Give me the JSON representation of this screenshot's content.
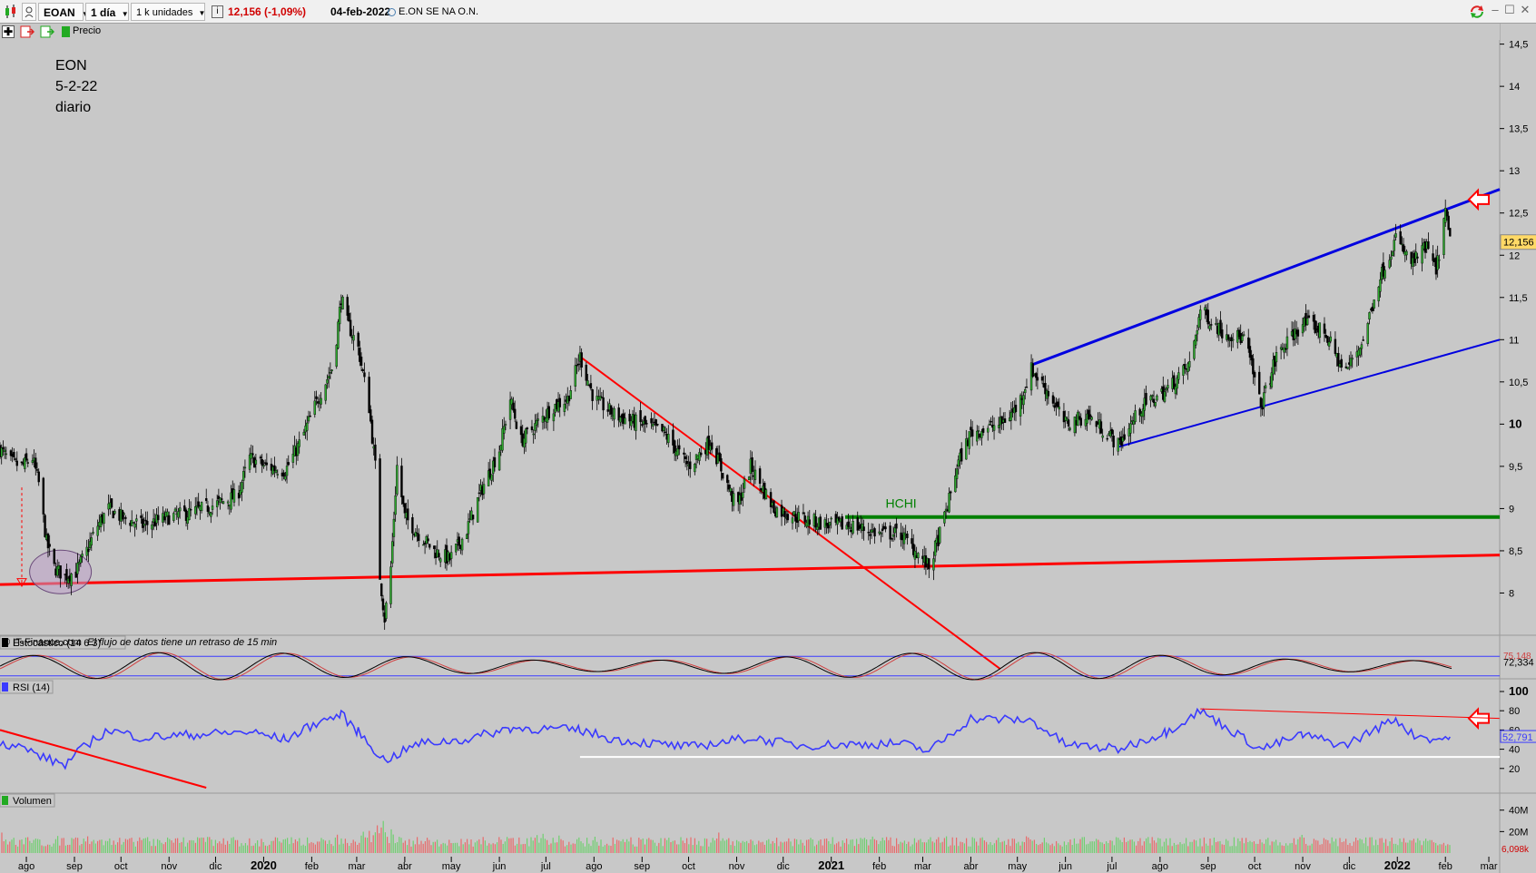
{
  "toolbar": {
    "symbol": "EOAN",
    "interval": "1 día",
    "units": "1 k unidades",
    "info_glyph": "i",
    "price_change": "12,156 (-1,09%)",
    "date": "04-feb-2022",
    "instrument": "E.ON SE NA O.N."
  },
  "subbar": {
    "price_label": "Precio"
  },
  "annotation": {
    "line1": "EON",
    "line2": "5-2-22",
    "line3": "diario",
    "hchi": "HCHI"
  },
  "copyright": {
    "source": "© IT-Finance.com",
    "delay": "El flujo de datos tiene un retraso de 15 min"
  },
  "panels": {
    "stochastic": {
      "label": "Estocástico (14 6 3)",
      "value1": "75,148",
      "value2": "72,334"
    },
    "rsi": {
      "label": "RSI (14)",
      "value": "52,791"
    },
    "volume": {
      "label": "Volumen",
      "value": "6,098k"
    }
  },
  "colors": {
    "candle": "#000000",
    "red_line": "#ff0000",
    "blue_line": "#0000e0",
    "green_line": "#008000",
    "rsi": "#3a3aff",
    "price_tag": "#ffd966"
  },
  "chart_data": [
    {
      "type": "candlestick",
      "title": "",
      "symbol": "EOAN",
      "current_price": "12,156",
      "y_ticks": [
        "8",
        "8,5",
        "9",
        "9,5",
        "10",
        "10,5",
        "11",
        "11,5",
        "12",
        "12,5",
        "13",
        "13,5",
        "14",
        "14,5"
      ],
      "ylim": [
        7.5,
        14.7
      ],
      "x_ticks": [
        "ago",
        "sep",
        "oct",
        "nov",
        "dic",
        "2020",
        "feb",
        "mar",
        "abr",
        "may",
        "jun",
        "jul",
        "ago",
        "sep",
        "oct",
        "nov",
        "dic",
        "2021",
        "feb",
        "mar",
        "abr",
        "may",
        "jun",
        "jul",
        "ago",
        "sep",
        "oct",
        "nov",
        "dic",
        "2022",
        "feb",
        "mar"
      ],
      "x_range": [
        "2019-07-15",
        "2022-03-08"
      ],
      "close_path": [
        [
          "2019-07-15",
          9.7
        ],
        [
          "2019-07-22",
          9.55
        ],
        [
          "2019-07-29",
          9.5
        ],
        [
          "2019-08-05",
          9.6
        ],
        [
          "2019-08-09",
          9.3
        ],
        [
          "2019-08-14",
          8.6
        ],
        [
          "2019-08-19",
          8.3
        ],
        [
          "2019-08-26",
          8.2
        ],
        [
          "2019-09-02",
          8.25
        ],
        [
          "2019-09-09",
          8.5
        ],
        [
          "2019-09-16",
          8.8
        ],
        [
          "2019-09-23",
          9.0
        ],
        [
          "2019-10-01",
          8.9
        ],
        [
          "2019-10-15",
          8.8
        ],
        [
          "2019-11-01",
          8.9
        ],
        [
          "2019-11-15",
          8.95
        ],
        [
          "2019-12-01",
          9.05
        ],
        [
          "2019-12-15",
          9.15
        ],
        [
          "2019-12-23",
          9.6
        ],
        [
          "2020-01-02",
          9.5
        ],
        [
          "2020-01-15",
          9.45
        ],
        [
          "2020-01-25",
          9.8
        ],
        [
          "2020-02-05",
          10.3
        ],
        [
          "2020-02-15",
          10.7
        ],
        [
          "2020-02-20",
          11.5
        ],
        [
          "2020-02-24",
          11.2
        ],
        [
          "2020-03-02",
          10.9
        ],
        [
          "2020-03-09",
          10.2
        ],
        [
          "2020-03-13",
          9.5
        ],
        [
          "2020-03-16",
          8.2
        ],
        [
          "2020-03-19",
          7.7
        ],
        [
          "2020-03-23",
          8.3
        ],
        [
          "2020-03-27",
          9.5
        ],
        [
          "2020-04-01",
          8.9
        ],
        [
          "2020-04-10",
          8.7
        ],
        [
          "2020-04-20",
          8.5
        ],
        [
          "2020-04-30",
          8.4
        ],
        [
          "2020-05-10",
          8.7
        ],
        [
          "2020-05-20",
          9.2
        ],
        [
          "2020-06-01",
          9.7
        ],
        [
          "2020-06-08",
          10.3
        ],
        [
          "2020-06-15",
          9.8
        ],
        [
          "2020-06-25",
          10.0
        ],
        [
          "2020-07-05",
          10.2
        ],
        [
          "2020-07-15",
          10.3
        ],
        [
          "2020-07-23",
          10.8
        ],
        [
          "2020-08-01",
          10.3
        ],
        [
          "2020-08-15",
          10.1
        ],
        [
          "2020-09-01",
          10.0
        ],
        [
          "2020-09-15",
          9.9
        ],
        [
          "2020-10-01",
          9.5
        ],
        [
          "2020-10-15",
          9.8
        ],
        [
          "2020-11-01",
          9.0
        ],
        [
          "2020-11-10",
          9.5
        ],
        [
          "2020-11-25",
          9.0
        ],
        [
          "2020-12-10",
          8.9
        ],
        [
          "2020-12-31",
          8.8
        ],
        [
          "2021-01-15",
          8.8
        ],
        [
          "2021-02-01",
          8.7
        ],
        [
          "2021-02-15",
          8.7
        ],
        [
          "2021-03-01",
          8.4
        ],
        [
          "2021-03-05",
          8.3
        ],
        [
          "2021-03-12",
          8.7
        ],
        [
          "2021-03-18",
          9.1
        ],
        [
          "2021-03-23",
          9.5
        ],
        [
          "2021-04-01",
          9.9
        ],
        [
          "2021-04-20",
          10.0
        ],
        [
          "2021-05-01",
          10.2
        ],
        [
          "2021-05-10",
          10.65
        ],
        [
          "2021-05-20",
          10.4
        ],
        [
          "2021-06-01",
          10.0
        ],
        [
          "2021-06-15",
          10.1
        ],
        [
          "2021-06-28",
          9.9
        ],
        [
          "2021-07-05",
          9.75
        ],
        [
          "2021-07-20",
          10.2
        ],
        [
          "2021-08-05",
          10.4
        ],
        [
          "2021-08-20",
          10.7
        ],
        [
          "2021-08-27",
          11.35
        ],
        [
          "2021-09-10",
          11.1
        ],
        [
          "2021-09-25",
          11.0
        ],
        [
          "2021-10-05",
          10.2
        ],
        [
          "2021-10-15",
          10.8
        ],
        [
          "2021-11-01",
          11.2
        ],
        [
          "2021-11-15",
          11.1
        ],
        [
          "2021-11-28",
          10.6
        ],
        [
          "2021-12-10",
          11.0
        ],
        [
          "2021-12-20",
          11.7
        ],
        [
          "2021-12-31",
          12.2
        ],
        [
          "2022-01-10",
          11.9
        ],
        [
          "2022-01-20",
          12.1
        ],
        [
          "2022-01-26",
          11.8
        ],
        [
          "2022-02-01",
          12.5
        ],
        [
          "2022-02-04",
          12.156
        ]
      ],
      "annotations": [
        {
          "type": "trendline",
          "color": "red",
          "from": [
            "2019-07-15",
            8.1
          ],
          "to": [
            "2022-03-08",
            8.45
          ]
        },
        {
          "type": "trendline",
          "color": "red",
          "from": [
            "2020-07-23",
            10.8
          ],
          "to": [
            "2021-04-20",
            7.1
          ]
        },
        {
          "type": "trendline",
          "color": "blue",
          "from": [
            "2021-05-10",
            10.7
          ],
          "to": [
            "2022-03-08",
            12.78
          ]
        },
        {
          "type": "trendline",
          "color": "blue",
          "from": [
            "2021-07-05",
            9.73
          ],
          "to": [
            "2022-03-08",
            11.0
          ]
        },
        {
          "type": "horizontal",
          "color": "green",
          "label": "HCHI",
          "from": "2021-01-10",
          "value": 8.9
        }
      ]
    },
    {
      "type": "line",
      "title": "Estocástico (14 6 3)",
      "series": [
        {
          "name": "Estocástico (14 6 3)",
          "last_value": 72.334
        }
      ],
      "ylim": [
        0,
        100
      ],
      "reference_lines": [
        20,
        80
      ]
    },
    {
      "type": "line",
      "title": "RSI (14)",
      "y_ticks": [
        20,
        40,
        60,
        80,
        100
      ],
      "ylim": [
        0,
        100
      ],
      "series": [
        {
          "name": "RSI (14)",
          "last_value": 52.791
        }
      ],
      "rsi_path": [
        [
          "2019-07-15",
          47
        ],
        [
          "2019-07-29",
          42
        ],
        [
          "2019-08-14",
          30
        ],
        [
          "2019-08-26",
          24
        ],
        [
          "2019-09-09",
          45
        ],
        [
          "2019-09-23",
          60
        ],
        [
          "2019-10-15",
          52
        ],
        [
          "2019-11-15",
          55
        ],
        [
          "2019-12-23",
          58
        ],
        [
          "2020-01-15",
          50
        ],
        [
          "2020-02-05",
          68
        ],
        [
          "2020-02-20",
          76
        ],
        [
          "2020-03-02",
          58
        ],
        [
          "2020-03-19",
          28
        ],
        [
          "2020-04-10",
          46
        ],
        [
          "2020-05-10",
          50
        ],
        [
          "2020-06-08",
          62
        ],
        [
          "2020-07-23",
          60
        ],
        [
          "2020-08-15",
          50
        ],
        [
          "2020-10-01",
          42
        ],
        [
          "2020-11-10",
          52
        ],
        [
          "2020-12-10",
          44
        ],
        [
          "2021-02-15",
          46
        ],
        [
          "2021-03-05",
          38
        ],
        [
          "2021-04-01",
          72
        ],
        [
          "2021-05-10",
          70
        ],
        [
          "2021-06-01",
          45
        ],
        [
          "2021-07-05",
          40
        ],
        [
          "2021-08-05",
          58
        ],
        [
          "2021-08-27",
          80
        ],
        [
          "2021-10-05",
          40
        ],
        [
          "2021-11-01",
          55
        ],
        [
          "2021-11-28",
          44
        ],
        [
          "2021-12-31",
          72
        ],
        [
          "2022-01-10",
          56
        ],
        [
          "2022-01-26",
          50
        ],
        [
          "2022-02-04",
          52.791
        ]
      ],
      "annotations": [
        {
          "type": "trendline",
          "color": "red",
          "from": [
            "2019-07-15",
            60
          ],
          "to": [
            "2019-11-25",
            0
          ]
        },
        {
          "type": "trendline",
          "color": "red",
          "from": [
            "2021-08-27",
            82
          ],
          "to": [
            "2022-03-08",
            72
          ]
        },
        {
          "type": "horizontal",
          "color": "white",
          "from": "2020-07-23",
          "value": 32
        }
      ]
    },
    {
      "type": "bar",
      "title": "Volumen",
      "y_ticks": [
        "20M",
        "40M"
      ],
      "ylim": [
        0,
        44000000
      ],
      "last_value": "6,098k"
    }
  ]
}
